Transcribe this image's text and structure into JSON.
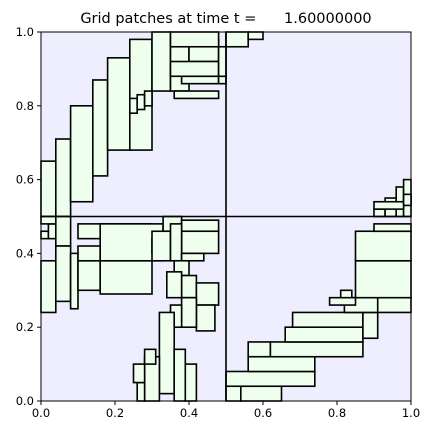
{
  "chart_data": {
    "type": "patch-plot",
    "title": "Grid patches at time t =      1.60000000",
    "xlabel": "",
    "ylabel": "",
    "xlim": [
      0.0,
      1.0
    ],
    "ylim": [
      0.0,
      1.0
    ],
    "xticks": [
      "0.0",
      "0.2",
      "0.4",
      "0.6",
      "0.8",
      "1.0"
    ],
    "yticks": [
      "0.0",
      "0.2",
      "0.4",
      "0.6",
      "0.8",
      "1.0"
    ],
    "grid": false,
    "colors": {
      "background": "#eeeeff",
      "patch_fill": "#eeffee",
      "patch_edge": "#000000",
      "axis_frame": "#000000"
    },
    "level1_boundaries": {
      "x": [
        0.5
      ],
      "y": [
        0.5
      ]
    },
    "patches": [
      [
        0.0,
        0.5,
        0.5,
        1.0
      ],
      [
        0.5,
        1.0,
        0.5,
        1.0
      ],
      [
        0.0,
        0.5,
        0.0,
        0.5
      ],
      [
        0.5,
        1.0,
        0.0,
        0.5
      ],
      [
        0.0,
        0.04,
        0.5,
        0.65
      ],
      [
        0.04,
        0.08,
        0.5,
        0.71
      ],
      [
        0.08,
        0.14,
        0.54,
        0.8
      ],
      [
        0.14,
        0.18,
        0.61,
        0.87
      ],
      [
        0.18,
        0.24,
        0.68,
        0.93
      ],
      [
        0.24,
        0.3,
        0.68,
        0.98
      ],
      [
        0.24,
        0.26,
        0.78,
        0.82
      ],
      [
        0.26,
        0.28,
        0.79,
        0.83
      ],
      [
        0.28,
        0.3,
        0.8,
        0.84
      ],
      [
        0.3,
        0.35,
        0.84,
        1.0
      ],
      [
        0.35,
        0.4,
        0.84,
        0.98
      ],
      [
        0.38,
        0.48,
        0.86,
        0.88
      ],
      [
        0.4,
        0.48,
        0.92,
        0.98
      ],
      [
        0.36,
        0.48,
        0.82,
        0.84
      ],
      [
        0.48,
        0.5,
        0.86,
        0.88
      ],
      [
        0.35,
        0.48,
        0.88,
        0.92
      ],
      [
        0.48,
        0.5,
        0.88,
        0.96
      ],
      [
        0.35,
        0.48,
        0.96,
        1.0
      ],
      [
        0.5,
        0.56,
        0.96,
        1.0
      ],
      [
        0.56,
        0.6,
        0.98,
        1.0
      ],
      [
        0.9,
        0.93,
        0.5,
        0.52
      ],
      [
        0.93,
        0.96,
        0.5,
        0.55
      ],
      [
        0.96,
        0.98,
        0.5,
        0.58
      ],
      [
        0.98,
        1.0,
        0.5,
        0.6
      ],
      [
        0.9,
        0.98,
        0.52,
        0.54
      ],
      [
        0.98,
        1.0,
        0.53,
        0.56
      ],
      [
        0.0,
        0.02,
        0.44,
        0.46
      ],
      [
        0.02,
        0.04,
        0.44,
        0.48
      ],
      [
        0.0,
        0.04,
        0.48,
        0.5
      ],
      [
        0.04,
        0.08,
        0.42,
        0.5
      ],
      [
        0.0,
        0.04,
        0.24,
        0.38
      ],
      [
        0.04,
        0.08,
        0.27,
        0.42
      ],
      [
        0.08,
        0.1,
        0.25,
        0.4
      ],
      [
        0.1,
        0.16,
        0.3,
        0.38
      ],
      [
        0.1,
        0.16,
        0.38,
        0.42
      ],
      [
        0.16,
        0.3,
        0.29,
        0.38
      ],
      [
        0.1,
        0.3,
        0.44,
        0.48
      ],
      [
        0.16,
        0.33,
        0.38,
        0.48
      ],
      [
        0.3,
        0.33,
        0.4,
        0.44
      ],
      [
        0.33,
        0.38,
        0.46,
        0.5
      ],
      [
        0.38,
        0.48,
        0.46,
        0.49
      ],
      [
        0.38,
        0.48,
        0.4,
        0.46
      ],
      [
        0.33,
        0.38,
        0.4,
        0.46
      ],
      [
        0.3,
        0.35,
        0.38,
        0.46
      ],
      [
        0.35,
        0.38,
        0.38,
        0.48
      ],
      [
        0.38,
        0.44,
        0.38,
        0.4
      ],
      [
        0.36,
        0.4,
        0.34,
        0.38
      ],
      [
        0.38,
        0.42,
        0.28,
        0.34
      ],
      [
        0.34,
        0.38,
        0.28,
        0.35
      ],
      [
        0.42,
        0.48,
        0.26,
        0.32
      ],
      [
        0.42,
        0.47,
        0.19,
        0.26
      ],
      [
        0.38,
        0.42,
        0.2,
        0.28
      ],
      [
        0.35,
        0.38,
        0.2,
        0.26
      ],
      [
        0.32,
        0.36,
        0.02,
        0.24
      ],
      [
        0.36,
        0.39,
        0.0,
        0.14
      ],
      [
        0.39,
        0.42,
        0.0,
        0.1
      ],
      [
        0.28,
        0.32,
        0.0,
        0.12
      ],
      [
        0.26,
        0.28,
        0.0,
        0.05
      ],
      [
        0.25,
        0.28,
        0.05,
        0.1
      ],
      [
        0.28,
        0.31,
        0.1,
        0.14
      ],
      [
        0.5,
        0.54,
        0.0,
        0.04
      ],
      [
        0.54,
        0.65,
        0.0,
        0.04
      ],
      [
        0.5,
        0.74,
        0.04,
        0.08
      ],
      [
        0.56,
        0.74,
        0.08,
        0.12
      ],
      [
        0.56,
        0.62,
        0.12,
        0.16
      ],
      [
        0.62,
        0.87,
        0.12,
        0.16
      ],
      [
        0.66,
        0.87,
        0.16,
        0.2
      ],
      [
        0.68,
        0.87,
        0.2,
        0.24
      ],
      [
        0.87,
        0.91,
        0.17,
        0.24
      ],
      [
        0.91,
        1.0,
        0.24,
        0.28
      ],
      [
        0.82,
        0.91,
        0.24,
        0.28
      ],
      [
        0.85,
        1.0,
        0.28,
        0.38
      ],
      [
        0.85,
        1.0,
        0.38,
        0.46
      ],
      [
        0.78,
        0.85,
        0.26,
        0.28
      ],
      [
        0.81,
        0.84,
        0.28,
        0.3
      ],
      [
        0.9,
        1.0,
        0.46,
        0.48
      ]
    ]
  }
}
